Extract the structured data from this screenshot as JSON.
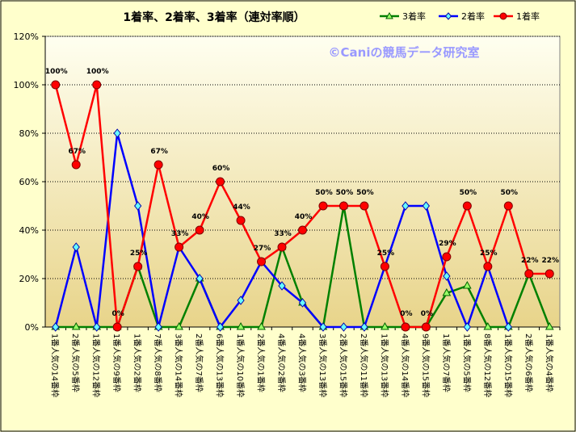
{
  "chart_data": {
    "type": "line",
    "title": "1着率、2着率、3着率（連対率順）",
    "watermark": "©Caniの競馬データ研究室",
    "xlabel": "",
    "ylabel": "",
    "ylim": [
      0,
      120
    ],
    "y_ticks": [
      "0%",
      "20%",
      "40%",
      "60%",
      "80%",
      "100%",
      "120%"
    ],
    "grid": true,
    "legend_position": "top-right",
    "categories": [
      "1番人気の14番枠",
      "2番人気の5番枠",
      "1番人気の12番枠",
      "1番人気の9番枠",
      "1番人気の2番枠",
      "7番人気の8番枠",
      "3番人気の14番枠",
      "2番人気の7番枠",
      "6番人気の13番枠",
      "1番人気の10番枠",
      "2番人気の1番枠",
      "4番人気の2番枠",
      "4番人気の3番枠",
      "3番人気の13番枠",
      "2番人気の15番枠",
      "2番人気の11番枠",
      "1番人気の13番枠",
      "4番人気の14番枠",
      "9番人気の15番枠",
      "1番人気の7番枠",
      "1番人気の5番枠",
      "8番人気の12番枠",
      "1番人気の15番枠",
      "2番人気の6番枠",
      "1番人気の4番枠"
    ],
    "series": [
      {
        "name": "3着率",
        "color": "#008000",
        "marker": "triangle",
        "values": [
          0,
          0,
          0,
          0,
          25,
          0,
          0,
          20,
          0,
          0,
          0,
          33,
          10,
          0,
          50,
          0,
          0,
          0,
          0,
          14,
          17,
          0,
          0,
          22,
          0
        ]
      },
      {
        "name": "2着率",
        "color": "#0000ff",
        "marker": "diamond",
        "values": [
          0,
          33,
          0,
          80,
          50,
          0,
          33,
          20,
          0,
          11,
          27,
          17,
          10,
          0,
          0,
          0,
          25,
          50,
          50,
          21,
          0,
          25,
          0,
          null,
          null
        ]
      },
      {
        "name": "1着率",
        "color": "#ff0000",
        "marker": "circle",
        "values": [
          100,
          67,
          100,
          0,
          25,
          67,
          33,
          40,
          60,
          44,
          27,
          33,
          40,
          50,
          50,
          50,
          25,
          0,
          0,
          29,
          50,
          25,
          50,
          22,
          22
        ],
        "labels": [
          "100%",
          "67%",
          "100%",
          "0%",
          "25%",
          "67%",
          "33%",
          "40%",
          "60%",
          "44%",
          "27%",
          "33%",
          "40%",
          "50%",
          "50%",
          "50%",
          "25%",
          "0%",
          "0%",
          "29%",
          "50%",
          "25%",
          "50%",
          "22%",
          "22%"
        ]
      }
    ]
  }
}
